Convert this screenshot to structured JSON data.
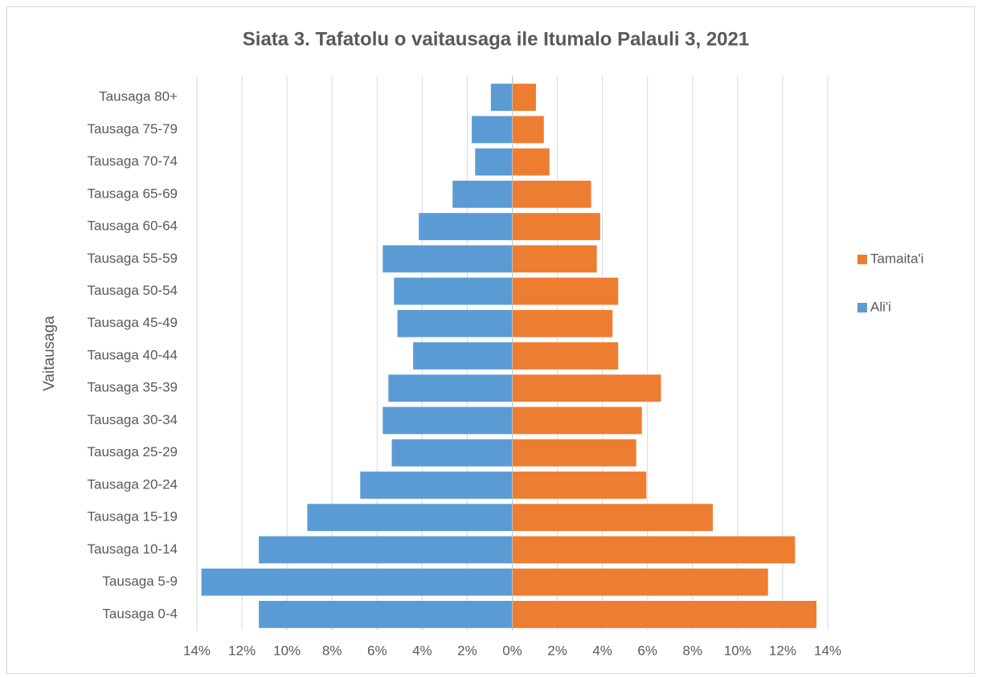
{
  "chart_data": {
    "type": "pyramid",
    "title": "Siata 3. Tafatolu o vaitausaga ile Itumalo Palauli 3, 2021",
    "y_label": "Vaitausaga",
    "categories": [
      "Tausaga 0-4",
      "Tausaga 5-9",
      "Tausaga 10-14",
      "Tausaga 15-19",
      "Tausaga 20-24",
      "Tausaga 25-29",
      "Tausaga 30-34",
      "Tausaga 35-39",
      "Tausaga 40-44",
      "Tausaga 45-49",
      "Tausaga 50-54",
      "Tausaga 55-59",
      "Tausaga 60-64",
      "Tausaga 65-69",
      "Tausaga 70-74",
      "Tausaga 75-79",
      "Tausaga 80+"
    ],
    "series": [
      {
        "name": "Tamaita'i",
        "color": "#ed7d31",
        "values": [
          13.5,
          11.35,
          12.55,
          8.9,
          5.95,
          5.5,
          5.75,
          6.6,
          4.7,
          4.45,
          4.7,
          3.75,
          3.9,
          3.5,
          1.65,
          1.4,
          1.05
        ]
      },
      {
        "name": "Ali'i",
        "color": "#5b9bd5",
        "values": [
          -11.25,
          -13.8,
          -11.25,
          -9.1,
          -6.75,
          -5.35,
          -5.75,
          -5.5,
          -4.4,
          -5.1,
          -5.25,
          -5.75,
          -4.15,
          -2.65,
          -1.65,
          -1.8,
          -0.95
        ]
      }
    ],
    "xlim": [
      -14,
      14
    ],
    "xticks": [
      {
        "value": -14,
        "label": "14%"
      },
      {
        "value": -12,
        "label": "12%"
      },
      {
        "value": -10,
        "label": "10%"
      },
      {
        "value": -8,
        "label": "8%"
      },
      {
        "value": -6,
        "label": "6%"
      },
      {
        "value": -4,
        "label": "4%"
      },
      {
        "value": -2,
        "label": "2%"
      },
      {
        "value": 0,
        "label": "0%"
      },
      {
        "value": 2,
        "label": "2%"
      },
      {
        "value": 4,
        "label": "4%"
      },
      {
        "value": 6,
        "label": "6%"
      },
      {
        "value": 8,
        "label": "8%"
      },
      {
        "value": 10,
        "label": "10%"
      },
      {
        "value": 12,
        "label": "12%"
      },
      {
        "value": 14,
        "label": "14%"
      }
    ],
    "grid": true,
    "legend": "right"
  }
}
